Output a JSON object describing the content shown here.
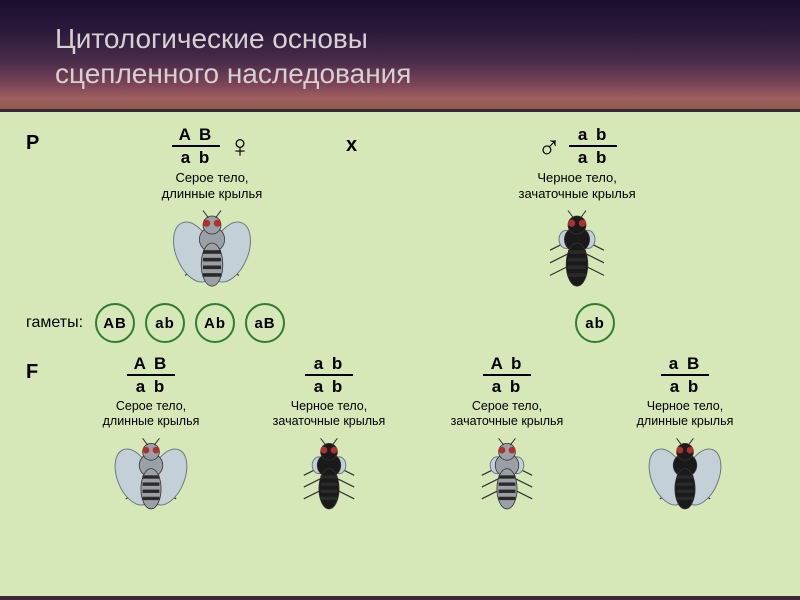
{
  "title_line1": "Цитологические основы",
  "title_line2": "сцепленного  наследования",
  "labels": {
    "P": "P",
    "gametes": "гаметы:",
    "F": "F",
    "cross": "x"
  },
  "parents": {
    "female": {
      "top": "A B",
      "bot": "a b",
      "symbol": "♀",
      "pheno1": "Серое тело,",
      "pheno2": "длинные крылья",
      "body_color": "#9aa0a6",
      "wing_long": true
    },
    "male": {
      "top": "a b",
      "bot": "a b",
      "symbol": "♂",
      "pheno1": "Черное тело,",
      "pheno2": "зачаточные крылья",
      "body_color": "#1a1a1a",
      "wing_long": false
    }
  },
  "gametes_female": [
    {
      "text": "AB"
    },
    {
      "text": "ab"
    },
    {
      "text": "Ab"
    },
    {
      "text": "aB"
    }
  ],
  "gametes_male": [
    {
      "text": "ab"
    }
  ],
  "gamete_ring_color": "#2e7d32",
  "offspring": [
    {
      "top": "A B",
      "bot": "a b",
      "p1": "Серое тело,",
      "p2": "длинные крылья",
      "body": "#9aa0a6",
      "wing_long": true
    },
    {
      "top": "a b",
      "bot": "a b",
      "p1": "Черное тело,",
      "p2": "зачаточные крылья",
      "body": "#1a1a1a",
      "wing_long": false
    },
    {
      "top": "A b",
      "bot": "a b",
      "p1": "Серое тело,",
      "p2": "зачаточные крылья",
      "body": "#9aa0a6",
      "wing_long": false
    },
    {
      "top": "a B",
      "bot": "a b",
      "p1": "Черное тело,",
      "p2": "длинные крылья",
      "body": "#1a1a1a",
      "wing_long": true
    }
  ],
  "colors": {
    "diagram_bg": "#d7e8b8",
    "wing": "#c4d0d8",
    "wing_outline": "#6a7a85",
    "stripe": "#2a2a2a",
    "eye": "#b03030"
  }
}
